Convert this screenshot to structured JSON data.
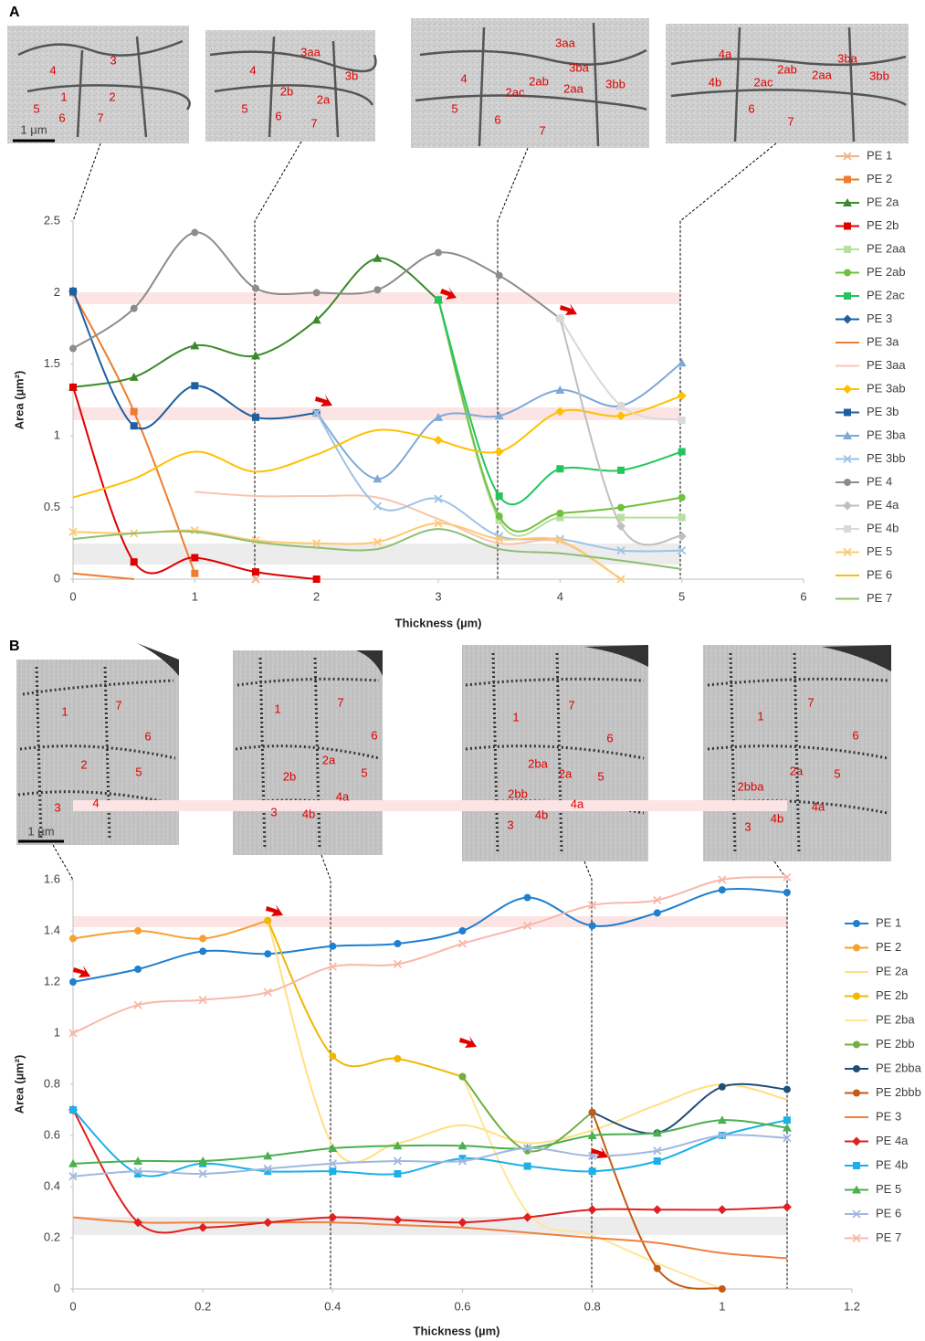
{
  "figure": {
    "panels": [
      {
        "letter": "A",
        "scale_bar": "1 µm",
        "images": [
          {
            "labels": [
              "4",
              "3",
              "1",
              "2",
              "5",
              "6",
              "7"
            ]
          },
          {
            "labels": [
              "3aa",
              "4",
              "3b",
              "2b",
              "2a",
              "5",
              "6",
              "7"
            ]
          },
          {
            "labels": [
              "3aa",
              "3ba",
              "4",
              "2ab",
              "2ac",
              "2aa",
              "3bb",
              "5",
              "6",
              "7"
            ]
          },
          {
            "labels": [
              "4a",
              "3ba",
              "2ab",
              "2aa",
              "3bb",
              "4b",
              "2ac",
              "6",
              "7"
            ]
          }
        ]
      },
      {
        "letter": "B",
        "scale_bar": "1 µm",
        "images": [
          {
            "labels": [
              "1",
              "7",
              "6",
              "2",
              "5",
              "3",
              "4"
            ]
          },
          {
            "labels": [
              "1",
              "7",
              "6",
              "2a",
              "5",
              "2b",
              "4a",
              "3",
              "4b"
            ]
          },
          {
            "labels": [
              "1",
              "7",
              "6",
              "2ba",
              "2a",
              "5",
              "2bb",
              "4a",
              "4b",
              "3"
            ]
          },
          {
            "labels": [
              "1",
              "7",
              "6",
              "2a",
              "5",
              "2bba",
              "4a",
              "4b",
              "3"
            ]
          }
        ]
      }
    ]
  },
  "chart_data": [
    {
      "type": "line",
      "x_label": "Thickness (µm)",
      "y_label": "Area (µm²)",
      "x": [
        0,
        0.5,
        1,
        1.5,
        2,
        2.5,
        3,
        3.5,
        4,
        4.5,
        5
      ],
      "xlim": [
        0,
        6
      ],
      "xticks": [
        0,
        1,
        2,
        3,
        4,
        5,
        6
      ],
      "ylim": [
        0,
        2.5
      ],
      "yticks": [
        0,
        0.5,
        1,
        1.5,
        2,
        2.5
      ],
      "grid": false,
      "smooth": true,
      "legend": "right",
      "series": [
        {
          "name": "PE 1",
          "color": "#f4b183",
          "marker": "x",
          "values": [
            null,
            null,
            null,
            0,
            null,
            null,
            null,
            null,
            null,
            null,
            null
          ]
        },
        {
          "name": "PE 2",
          "color": "#ed7d31",
          "marker": "square",
          "values": [
            2.0,
            1.17,
            0.04,
            null,
            null,
            null,
            null,
            null,
            null,
            null,
            null
          ]
        },
        {
          "name": "PE 2a",
          "color": "#3a8a2a",
          "marker": "triangle",
          "values": [
            1.34,
            1.41,
            1.63,
            1.56,
            1.81,
            2.24,
            1.95,
            null,
            null,
            null,
            null
          ]
        },
        {
          "name": "PE 2b",
          "color": "#e00000",
          "marker": "square",
          "values": [
            1.34,
            0.12,
            0.15,
            0.05,
            0,
            null,
            null,
            null,
            null,
            null,
            null
          ]
        },
        {
          "name": "PE 2aa",
          "color": "#b7dfa0",
          "marker": "square",
          "values": [
            null,
            null,
            null,
            null,
            null,
            null,
            1.95,
            0.41,
            0.43,
            0.43,
            0.43
          ]
        },
        {
          "name": "PE 2ab",
          "color": "#70c040",
          "marker": "circle",
          "values": [
            null,
            null,
            null,
            null,
            null,
            null,
            1.95,
            0.44,
            0.46,
            0.5,
            0.57
          ]
        },
        {
          "name": "PE 2ac",
          "color": "#22c55e",
          "marker": "square",
          "values": [
            null,
            null,
            null,
            null,
            null,
            null,
            1.95,
            0.58,
            0.77,
            0.76,
            0.89
          ]
        },
        {
          "name": "PE 3",
          "color": "#1f5fa0",
          "marker": "diamond",
          "values": [
            2.01,
            null,
            null,
            null,
            null,
            null,
            null,
            null,
            null,
            null,
            null
          ]
        },
        {
          "name": "PE 3a",
          "color": "#ed7d31",
          "marker": "none",
          "values": [
            0.04,
            0,
            null,
            null,
            null,
            null,
            null,
            null,
            null,
            null,
            null
          ]
        },
        {
          "name": "PE 3aa",
          "color": "#f8c4b0",
          "marker": "none",
          "values": [
            null,
            null,
            0.61,
            0.58,
            0.58,
            0.57,
            0.42,
            0.25,
            0.26,
            0,
            null
          ]
        },
        {
          "name": "PE 3ab",
          "color": "#ffc000",
          "marker": "diamond",
          "values": [
            null,
            null,
            null,
            null,
            null,
            null,
            0.97,
            0.89,
            1.17,
            1.14,
            1.28
          ]
        },
        {
          "name": "PE 3b",
          "color": "#1f5fa0",
          "marker": "square",
          "values": [
            2.01,
            1.07,
            1.35,
            1.13,
            1.16,
            null,
            null,
            null,
            null,
            null,
            null
          ]
        },
        {
          "name": "PE 3ba",
          "color": "#7fa8d8",
          "marker": "triangle",
          "values": [
            null,
            null,
            null,
            null,
            1.16,
            0.7,
            1.13,
            1.14,
            1.32,
            1.21,
            1.51
          ]
        },
        {
          "name": "PE 3bb",
          "color": "#9dc3e6",
          "marker": "x",
          "values": [
            null,
            null,
            null,
            null,
            1.16,
            0.51,
            0.56,
            0.3,
            0.28,
            0.2,
            0.2
          ]
        },
        {
          "name": "PE 4",
          "color": "#8c8c8c",
          "marker": "circle",
          "values": [
            1.61,
            1.89,
            2.42,
            2.03,
            2.0,
            2.02,
            2.28,
            2.12,
            1.82,
            null,
            null
          ]
        },
        {
          "name": "PE 4a",
          "color": "#bfbfbf",
          "marker": "diamond",
          "values": [
            null,
            null,
            null,
            null,
            null,
            null,
            null,
            null,
            1.82,
            0.37,
            0.3
          ]
        },
        {
          "name": "PE 4b",
          "color": "#d9d9d9",
          "marker": "square",
          "values": [
            null,
            null,
            null,
            null,
            null,
            null,
            null,
            null,
            1.82,
            1.21,
            1.11
          ]
        },
        {
          "name": "PE 5",
          "color": "#ffc870",
          "marker": "x",
          "values": [
            0.33,
            0.32,
            0.34,
            0.27,
            0.25,
            0.26,
            0.39,
            0.28,
            0.27,
            0,
            null
          ]
        },
        {
          "name": "PE 6",
          "color": "#ffc000",
          "marker": "none",
          "values": [
            0.57,
            0.7,
            0.89,
            0.75,
            0.87,
            1.04,
            0.97,
            null,
            null,
            null,
            null
          ]
        },
        {
          "name": "PE 7",
          "color": "#8cbf70",
          "marker": "none",
          "values": [
            0.28,
            0.32,
            0.33,
            0.26,
            0.22,
            0.21,
            0.35,
            0.21,
            0.18,
            0.13,
            0.07
          ]
        }
      ]
    },
    {
      "type": "line",
      "x_label": "Thickness (µm)",
      "y_label": "Area (µm²)",
      "x": [
        0,
        0.1,
        0.2,
        0.3,
        0.4,
        0.5,
        0.6,
        0.7,
        0.8,
        0.9,
        1,
        1.1
      ],
      "xlim": [
        0,
        1.2
      ],
      "xticks": [
        0,
        0.2,
        0.4,
        0.6,
        0.8,
        1,
        1.2
      ],
      "ylim": [
        0,
        1.6
      ],
      "yticks": [
        0,
        0.2,
        0.4,
        0.6,
        0.8,
        1,
        1.2,
        1.4,
        1.6
      ],
      "grid": false,
      "smooth": true,
      "legend": "right",
      "series": [
        {
          "name": "PE 1",
          "color": "#1f7fd0",
          "marker": "circle",
          "values": [
            1.2,
            1.25,
            1.32,
            1.31,
            1.34,
            1.35,
            1.4,
            1.53,
            1.42,
            1.47,
            1.56,
            1.55
          ]
        },
        {
          "name": "PE 2",
          "color": "#f5a030",
          "marker": "circle",
          "values": [
            1.37,
            1.4,
            1.37,
            1.44,
            null,
            null,
            null,
            null,
            null,
            null,
            null,
            null
          ]
        },
        {
          "name": "PE 2a",
          "color": "#ffe080",
          "marker": "none",
          "values": [
            null,
            null,
            null,
            1.44,
            0.56,
            0.57,
            0.64,
            0.57,
            0.62,
            0.72,
            0.8,
            0.74
          ]
        },
        {
          "name": "PE 2b",
          "color": "#f0b800",
          "marker": "circle",
          "values": [
            null,
            null,
            null,
            1.44,
            0.91,
            0.9,
            0.83,
            null,
            null,
            null,
            null,
            null
          ]
        },
        {
          "name": "PE 2ba",
          "color": "#ffe699",
          "marker": "none",
          "values": [
            null,
            null,
            null,
            null,
            null,
            null,
            0.83,
            0.3,
            0.21,
            0.1,
            0,
            null
          ]
        },
        {
          "name": "PE 2bb",
          "color": "#70b040",
          "marker": "circle",
          "values": [
            null,
            null,
            null,
            null,
            null,
            null,
            0.83,
            0.54,
            0.69,
            null,
            null,
            null
          ]
        },
        {
          "name": "PE 2bba",
          "color": "#1f4e79",
          "marker": "circle",
          "values": [
            null,
            null,
            null,
            null,
            null,
            null,
            null,
            null,
            0.69,
            0.61,
            0.79,
            0.78
          ]
        },
        {
          "name": "PE 2bbb",
          "color": "#c55a11",
          "marker": "circle",
          "values": [
            null,
            null,
            null,
            null,
            null,
            null,
            null,
            null,
            0.69,
            0.08,
            0,
            null
          ]
        },
        {
          "name": "PE 3",
          "color": "#f08040",
          "marker": "none",
          "values": [
            0.28,
            0.26,
            0.26,
            0.26,
            0.26,
            0.25,
            0.24,
            0.22,
            0.2,
            0.18,
            0.14,
            0.12
          ]
        },
        {
          "name": "PE 4a",
          "color": "#e02020",
          "marker": "diamond",
          "values": [
            0.7,
            0.26,
            0.24,
            0.26,
            0.28,
            0.27,
            0.26,
            0.28,
            0.31,
            0.31,
            0.31,
            0.32
          ]
        },
        {
          "name": "PE 4b",
          "color": "#1cb0e8",
          "marker": "square",
          "values": [
            0.7,
            0.45,
            0.49,
            0.46,
            0.46,
            0.45,
            0.51,
            0.48,
            0.46,
            0.5,
            0.6,
            0.66
          ]
        },
        {
          "name": "PE 5",
          "color": "#4caf50",
          "marker": "triangle",
          "values": [
            0.49,
            0.5,
            0.5,
            0.52,
            0.55,
            0.56,
            0.56,
            0.55,
            0.6,
            0.61,
            0.66,
            0.63
          ]
        },
        {
          "name": "PE 6",
          "color": "#a0b8e0",
          "marker": "x",
          "values": [
            0.44,
            0.46,
            0.45,
            0.47,
            0.49,
            0.5,
            0.5,
            0.55,
            0.52,
            0.54,
            0.6,
            0.59
          ]
        },
        {
          "name": "PE 7",
          "color": "#f8b8a8",
          "marker": "x",
          "values": [
            1.0,
            1.11,
            1.13,
            1.16,
            1.26,
            1.27,
            1.35,
            1.42,
            1.5,
            1.52,
            1.6,
            1.61
          ]
        }
      ]
    }
  ]
}
